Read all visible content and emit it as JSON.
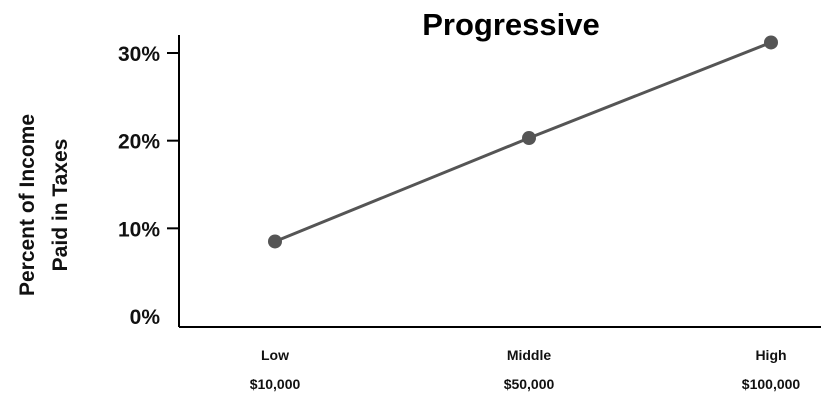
{
  "chart_data": {
    "type": "line",
    "title": "Progressive",
    "ylabel_lines": [
      "Percent of Income",
      "Paid in Taxes"
    ],
    "xlabel": "",
    "categories": [
      {
        "name": "Low",
        "sub": "$10,000"
      },
      {
        "name": "Middle",
        "sub": "$50,000"
      },
      {
        "name": "High",
        "sub": "$100,000"
      }
    ],
    "y_ticks": [
      {
        "value": 0,
        "label": "0%"
      },
      {
        "value": 10,
        "label": "10%"
      },
      {
        "value": 20,
        "label": "20%"
      },
      {
        "value": 30,
        "label": "30%"
      }
    ],
    "ylim": [
      0,
      30
    ],
    "series": [
      {
        "values": [
          8.5,
          20.3,
          31.2
        ]
      }
    ],
    "grid": false,
    "colors": {
      "line": "#555555",
      "marker": "#555555",
      "axis": "#000000"
    }
  }
}
